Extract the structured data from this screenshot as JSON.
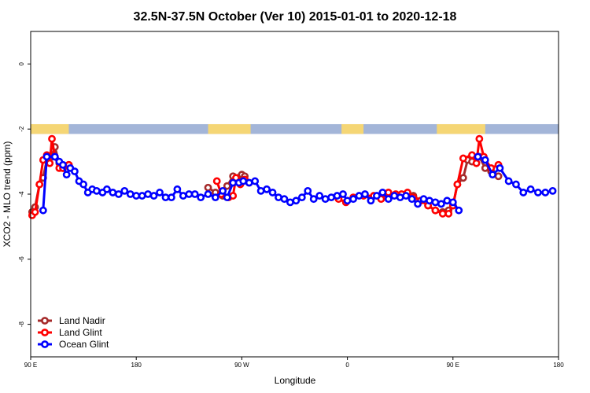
{
  "chart_data": {
    "type": "line",
    "title": "32.5N-37.5N October (Ver 10)   2015-01-01 to 2020-12-18",
    "xlabel": "Longitude",
    "ylabel": "XCO2 - MLO trend (ppm)",
    "xlim": [
      90,
      450
    ],
    "ylim": [
      -9,
      1
    ],
    "x_ticks": [
      {
        "value": 90,
        "label": "90 E"
      },
      {
        "value": 162,
        "label": "180"
      },
      {
        "value": 234,
        "label": "90 W"
      },
      {
        "value": 306,
        "label": "0"
      },
      {
        "value": 378,
        "label": "90 E"
      },
      {
        "value": 450,
        "label": "180"
      }
    ],
    "y_ticks": [
      {
        "value": 0,
        "label": "0"
      },
      {
        "value": -2,
        "label": "-2"
      },
      {
        "value": -4,
        "label": "-4"
      },
      {
        "value": -6,
        "label": "-6"
      },
      {
        "value": -8,
        "label": "-8"
      }
    ],
    "land_strip": {
      "y_range": [
        -1.85,
        -2.15
      ],
      "ocean_color": "#a3b5d8",
      "land_color": "#f5d675",
      "land_segments": [
        [
          90,
          116
        ],
        [
          211,
          240
        ],
        [
          302,
          317
        ],
        [
          367,
          400
        ]
      ]
    },
    "legend": {
      "position": "bottom-left",
      "entries": [
        "Land Nadir",
        "Land Glint",
        "Ocean Glint"
      ]
    },
    "series": [
      {
        "name": "Land Nadir",
        "color": "#a52a2a",
        "points": [
          [
            91,
            -4.55
          ],
          [
            93,
            -4.4
          ],
          [
            96,
            -3.7
          ],
          [
            98.5,
            -3.5
          ],
          [
            101,
            -2.95
          ],
          [
            104,
            -2.85
          ],
          [
            106.5,
            -2.55
          ],
          [
            109.5,
            -3.05
          ],
          [
            112,
            -3.2
          ],
          [
            116,
            -3.1
          ],
          [
            211,
            -3.8
          ],
          [
            216,
            -3.95
          ],
          [
            221,
            -4.05
          ],
          [
            224,
            -3.75
          ],
          [
            228,
            -3.45
          ],
          [
            231,
            -3.5
          ],
          [
            234,
            -3.4
          ],
          [
            236,
            -3.45
          ],
          [
            351,
            -4.05
          ],
          [
            356,
            -4.2
          ],
          [
            361,
            -4.35
          ],
          [
            366,
            -4.5
          ],
          [
            371,
            -4.55
          ],
          [
            375,
            -4.5
          ],
          [
            378,
            -4.35
          ],
          [
            381,
            -3.7
          ],
          [
            385,
            -3.5
          ],
          [
            388,
            -2.95
          ],
          [
            391,
            -3.0
          ],
          [
            396,
            -2.85
          ],
          [
            400,
            -3.2
          ],
          [
            404,
            -3.3
          ],
          [
            409,
            -3.45
          ]
        ]
      },
      {
        "name": "Land Glint",
        "color": "#ff0000",
        "points": [
          [
            91,
            -4.65
          ],
          [
            93,
            -4.55
          ],
          [
            96,
            -3.7
          ],
          [
            98.5,
            -2.95
          ],
          [
            101,
            -2.8
          ],
          [
            103,
            -3.05
          ],
          [
            104.5,
            -2.3
          ],
          [
            106.5,
            -2.85
          ],
          [
            109.5,
            -3.2
          ],
          [
            112,
            -3.2
          ],
          [
            116,
            -3.1
          ],
          [
            217,
            -3.6
          ],
          [
            220,
            -4.0
          ],
          [
            225,
            -4.1
          ],
          [
            228,
            -4.05
          ],
          [
            230,
            -3.5
          ],
          [
            233,
            -3.7
          ],
          [
            236,
            -3.55
          ],
          [
            239,
            -3.65
          ],
          [
            300,
            -4.15
          ],
          [
            305,
            -4.25
          ],
          [
            310,
            -4.1
          ],
          [
            317,
            -4.05
          ],
          [
            324,
            -4.05
          ],
          [
            329,
            -4.15
          ],
          [
            334,
            -3.95
          ],
          [
            339,
            -4.0
          ],
          [
            343,
            -4.0
          ],
          [
            347,
            -3.95
          ],
          [
            351,
            -4.1
          ],
          [
            356,
            -4.2
          ],
          [
            361,
            -4.35
          ],
          [
            366,
            -4.5
          ],
          [
            371,
            -4.6
          ],
          [
            375,
            -4.6
          ],
          [
            378,
            -4.35
          ],
          [
            381,
            -3.7
          ],
          [
            385,
            -2.9
          ],
          [
            391,
            -2.8
          ],
          [
            394,
            -3.05
          ],
          [
            396,
            -2.3
          ],
          [
            399,
            -2.85
          ],
          [
            404,
            -3.2
          ],
          [
            409,
            -3.1
          ]
        ]
      },
      {
        "name": "Ocean Glint",
        "color": "#0000ff",
        "points": [
          [
            98.5,
            -4.5
          ],
          [
            101,
            -2.85
          ],
          [
            106.5,
            -2.85
          ],
          [
            109.5,
            -3.0
          ],
          [
            112,
            -3.1
          ],
          [
            114.5,
            -3.4
          ],
          [
            117,
            -3.2
          ],
          [
            120,
            -3.3
          ],
          [
            123,
            -3.6
          ],
          [
            126,
            -3.7
          ],
          [
            129,
            -3.95
          ],
          [
            132,
            -3.85
          ],
          [
            135,
            -3.9
          ],
          [
            139,
            -3.95
          ],
          [
            142,
            -3.85
          ],
          [
            146,
            -3.95
          ],
          [
            150,
            -4.0
          ],
          [
            154,
            -3.9
          ],
          [
            158,
            -4.0
          ],
          [
            162,
            -4.05
          ],
          [
            166,
            -4.05
          ],
          [
            170,
            -4.0
          ],
          [
            174,
            -4.05
          ],
          [
            178,
            -3.95
          ],
          [
            182,
            -4.1
          ],
          [
            186,
            -4.1
          ],
          [
            190,
            -3.85
          ],
          [
            194,
            -4.05
          ],
          [
            198,
            -4.0
          ],
          [
            202,
            -4.0
          ],
          [
            206,
            -4.1
          ],
          [
            211,
            -4.0
          ],
          [
            216,
            -4.1
          ],
          [
            221,
            -3.9
          ],
          [
            224,
            -4.1
          ],
          [
            228,
            -3.65
          ],
          [
            232,
            -3.65
          ],
          [
            235,
            -3.6
          ],
          [
            239,
            -3.65
          ],
          [
            243,
            -3.6
          ],
          [
            247,
            -3.9
          ],
          [
            251,
            -3.85
          ],
          [
            255,
            -3.95
          ],
          [
            259,
            -4.1
          ],
          [
            263,
            -4.15
          ],
          [
            267,
            -4.25
          ],
          [
            271,
            -4.2
          ],
          [
            275,
            -4.1
          ],
          [
            279,
            -3.9
          ],
          [
            283,
            -4.15
          ],
          [
            287,
            -4.05
          ],
          [
            291,
            -4.15
          ],
          [
            295,
            -4.1
          ],
          [
            299,
            -4.05
          ],
          [
            303,
            -4.0
          ],
          [
            306,
            -4.2
          ],
          [
            310,
            -4.15
          ],
          [
            314,
            -4.05
          ],
          [
            318,
            -4.0
          ],
          [
            322,
            -4.2
          ],
          [
            326,
            -4.05
          ],
          [
            330,
            -3.95
          ],
          [
            334,
            -4.15
          ],
          [
            338,
            -4.05
          ],
          [
            342,
            -4.1
          ],
          [
            346,
            -4.05
          ],
          [
            350,
            -4.15
          ],
          [
            354,
            -4.3
          ],
          [
            358,
            -4.15
          ],
          [
            362,
            -4.2
          ],
          [
            366,
            -4.25
          ],
          [
            370,
            -4.3
          ],
          [
            374,
            -4.2
          ],
          [
            378,
            -4.25
          ],
          [
            382,
            -4.5
          ],
          [
            395,
            -2.85
          ],
          [
            400,
            -2.95
          ],
          [
            405,
            -3.4
          ],
          [
            410,
            -3.2
          ],
          [
            416,
            -3.6
          ],
          [
            421,
            -3.7
          ],
          [
            426,
            -3.95
          ],
          [
            431,
            -3.85
          ],
          [
            436,
            -3.95
          ],
          [
            441,
            -3.95
          ],
          [
            446,
            -3.9
          ]
        ]
      }
    ]
  }
}
